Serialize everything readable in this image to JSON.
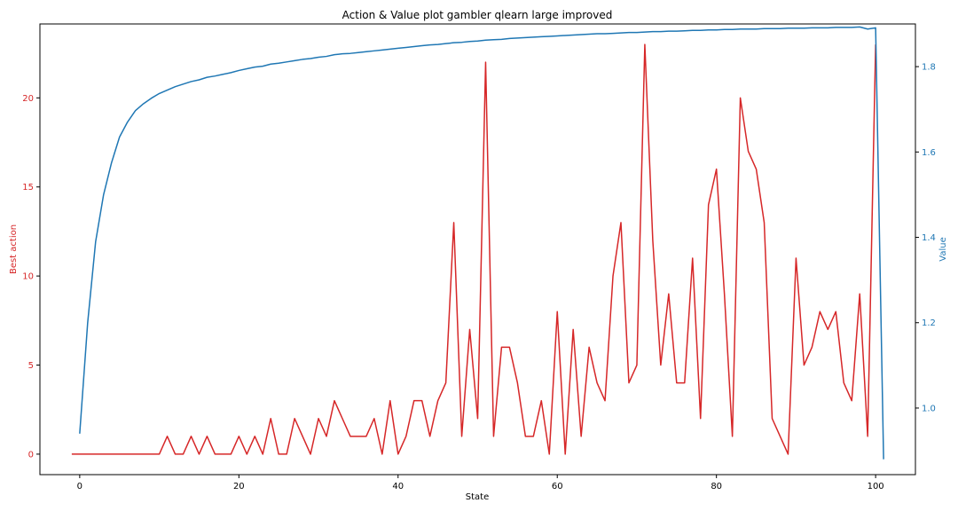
{
  "chart_data": {
    "type": "line",
    "title": "Action & Value plot gambler qlearn large improved",
    "xlabel": "State",
    "ylabel_left": "Best action",
    "ylabel_right": "Value",
    "xlim": [
      -5,
      105
    ],
    "ylim_left": [
      -1.15,
      24.15
    ],
    "ylim_right": [
      0.844,
      1.9
    ],
    "x_ticks": [
      0,
      20,
      40,
      60,
      80,
      100
    ],
    "y_left_ticks": [
      0,
      5,
      10,
      15,
      20
    ],
    "y_right_ticks": [
      1.0,
      1.2,
      1.4,
      1.6,
      1.8
    ],
    "grid": false,
    "colors": {
      "left": "#d62728",
      "right": "#1f77b4"
    },
    "series": [
      {
        "axis": "left",
        "values": [
          0,
          0,
          0,
          0,
          0,
          0,
          0,
          0,
          0,
          0,
          0,
          0,
          1,
          0,
          0,
          1,
          0,
          1,
          0,
          0,
          0,
          1,
          0,
          1,
          0,
          2,
          0,
          0,
          2,
          1,
          0,
          2,
          1,
          3,
          2,
          1,
          1,
          1,
          2,
          0,
          3,
          0,
          1,
          3,
          3,
          1,
          3,
          4,
          13,
          1,
          7,
          2,
          22,
          1,
          6,
          6,
          4,
          1,
          1,
          3,
          0,
          8,
          0,
          7,
          1,
          6,
          4,
          3,
          10,
          13,
          4,
          5,
          23,
          12,
          5,
          9,
          4,
          4,
          11,
          2,
          14,
          16,
          9,
          1,
          20,
          17,
          16,
          13,
          2,
          1,
          0,
          11,
          5,
          6,
          8,
          7,
          8,
          4,
          3,
          9,
          1,
          23
        ],
        "x_start": -1
      },
      {
        "axis": "right",
        "values": [
          0.94,
          1.2,
          1.39,
          1.5,
          1.575,
          1.635,
          1.67,
          1.697,
          1.713,
          1.726,
          1.737,
          1.745,
          1.753,
          1.759,
          1.765,
          1.769,
          1.775,
          1.778,
          1.782,
          1.786,
          1.791,
          1.795,
          1.799,
          1.801,
          1.806,
          1.808,
          1.811,
          1.814,
          1.817,
          1.819,
          1.822,
          1.824,
          1.828,
          1.83,
          1.831,
          1.833,
          1.835,
          1.837,
          1.839,
          1.841,
          1.843,
          1.845,
          1.847,
          1.849,
          1.851,
          1.852,
          1.854,
          1.856,
          1.857,
          1.859,
          1.86,
          1.862,
          1.863,
          1.864,
          1.866,
          1.867,
          1.868,
          1.869,
          1.87,
          1.871,
          1.872,
          1.873,
          1.874,
          1.875,
          1.876,
          1.877,
          1.877,
          1.878,
          1.879,
          1.88,
          1.88,
          1.881,
          1.882,
          1.882,
          1.883,
          1.883,
          1.884,
          1.885,
          1.885,
          1.886,
          1.886,
          1.887,
          1.887,
          1.888,
          1.888,
          1.888,
          1.889,
          1.889,
          1.889,
          1.89,
          1.89,
          1.89,
          1.891,
          1.891,
          1.891,
          1.892,
          1.892,
          1.892,
          1.893,
          1.888,
          1.891,
          0.88
        ],
        "x_start": 0
      }
    ]
  }
}
